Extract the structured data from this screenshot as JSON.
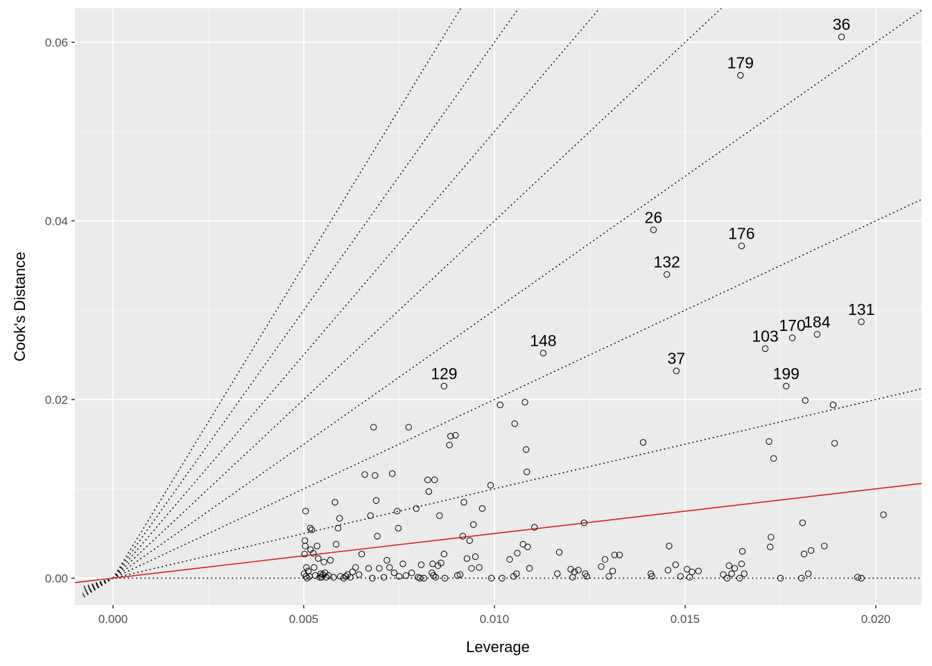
{
  "chart_data": {
    "type": "scatter",
    "xlabel": "Leverage",
    "ylabel": "Cook's Distance",
    "xlim": [
      -0.001,
      0.0212
    ],
    "ylim": [
      -0.003,
      0.0638
    ],
    "xticks": [
      0.0,
      0.005,
      0.01,
      0.015,
      0.02
    ],
    "xtick_labels": [
      "0.000",
      "0.005",
      "0.010",
      "0.015",
      "0.020"
    ],
    "yticks": [
      0.0,
      0.02,
      0.04,
      0.06
    ],
    "ytick_labels": [
      "0.00",
      "0.02",
      "0.04",
      "0.06"
    ],
    "grid": true,
    "colors": {
      "panel": "#ebebeb",
      "grid_major": "#ffffff",
      "grid_minor": "#f5f5f5",
      "points": "#000000",
      "fit_line": "#e31a1c",
      "contours": "#000000"
    },
    "contour_slopes": [
      0,
      1,
      2,
      3,
      4,
      5,
      6,
      7
    ],
    "fit_line": {
      "intercept": 0.0,
      "slope": 0.5
    },
    "labeled_points": [
      {
        "label": "36",
        "x": 0.0191,
        "y": 0.0606
      },
      {
        "label": "179",
        "x": 0.01645,
        "y": 0.0563
      },
      {
        "label": "26",
        "x": 0.01417,
        "y": 0.039
      },
      {
        "label": "176",
        "x": 0.01648,
        "y": 0.0372
      },
      {
        "label": "132",
        "x": 0.01452,
        "y": 0.034
      },
      {
        "label": "131",
        "x": 0.01962,
        "y": 0.0287
      },
      {
        "label": "184",
        "x": 0.01846,
        "y": 0.0273
      },
      {
        "label": "170",
        "x": 0.01781,
        "y": 0.0269
      },
      {
        "label": "103",
        "x": 0.0171,
        "y": 0.0257
      },
      {
        "label": "148",
        "x": 0.01128,
        "y": 0.0252
      },
      {
        "label": "37",
        "x": 0.01477,
        "y": 0.0232
      },
      {
        "label": "129",
        "x": 0.00868,
        "y": 0.0215
      },
      {
        "label": "199",
        "x": 0.01765,
        "y": 0.0215
      }
    ],
    "points": [
      [
        0.00505,
        0.0075
      ],
      [
        0.00503,
        0.0042
      ],
      [
        0.00504,
        0.0036
      ],
      [
        0.00502,
        0.0027
      ],
      [
        0.00507,
        0.0012
      ],
      [
        0.00501,
        0.0005
      ],
      [
        0.00506,
        0.0002
      ],
      [
        0.00509,
        0.0
      ],
      [
        0.00512,
        0.0008
      ],
      [
        0.00515,
        0.0002
      ],
      [
        0.00517,
        0.0056
      ],
      [
        0.00521,
        0.0054
      ],
      [
        0.00518,
        0.0032
      ],
      [
        0.00525,
        0.0028
      ],
      [
        0.00527,
        0.0012
      ],
      [
        0.0053,
        0.0003
      ],
      [
        0.00535,
        0.0036
      ],
      [
        0.00538,
        0.0022
      ],
      [
        0.00542,
        0.0001
      ],
      [
        0.00545,
        0.0005
      ],
      [
        0.00547,
        0.0001
      ],
      [
        0.0055,
        0.0004
      ],
      [
        0.00553,
        0.0018
      ],
      [
        0.00556,
        0.0006
      ],
      [
        0.00559,
        0.0001
      ],
      [
        0.00565,
        0.0003
      ],
      [
        0.0057,
        0.002
      ],
      [
        0.00578,
        0.0001
      ],
      [
        0.00582,
        0.0085
      ],
      [
        0.00585,
        0.0038
      ],
      [
        0.0059,
        0.0056
      ],
      [
        0.00594,
        0.0067
      ],
      [
        0.00596,
        0.0002
      ],
      [
        0.00605,
        0.0
      ],
      [
        0.0061,
        0.0002
      ],
      [
        0.00615,
        0.0004
      ],
      [
        0.00622,
        0.0001
      ],
      [
        0.00628,
        0.0007
      ],
      [
        0.00636,
        0.0012
      ],
      [
        0.00645,
        0.0004
      ],
      [
        0.00652,
        0.0027
      ],
      [
        0.0066,
        0.0116
      ],
      [
        0.0067,
        0.0011
      ],
      [
        0.00675,
        0.007
      ],
      [
        0.0068,
        0.0
      ],
      [
        0.00683,
        0.0169
      ],
      [
        0.00687,
        0.0115
      ],
      [
        0.0069,
        0.0087
      ],
      [
        0.00693,
        0.0047
      ],
      [
        0.00698,
        0.0011
      ],
      [
        0.0071,
        0.0001
      ],
      [
        0.00718,
        0.002
      ],
      [
        0.00725,
        0.0012
      ],
      [
        0.00732,
        0.0117
      ],
      [
        0.00737,
        0.0006
      ],
      [
        0.00745,
        0.0075
      ],
      [
        0.00748,
        0.0056
      ],
      [
        0.0075,
        0.0002
      ],
      [
        0.0076,
        0.0016
      ],
      [
        0.00768,
        0.0003
      ],
      [
        0.00775,
        0.0169
      ],
      [
        0.00783,
        0.0006
      ],
      [
        0.00795,
        0.0078
      ],
      [
        0.008,
        0.0001
      ],
      [
        0.00805,
        0.0
      ],
      [
        0.00808,
        0.0015
      ],
      [
        0.00815,
        0.0
      ],
      [
        0.00825,
        0.011
      ],
      [
        0.00828,
        0.0097
      ],
      [
        0.00836,
        0.0006
      ],
      [
        0.00838,
        0.0016
      ],
      [
        0.0084,
        0.0003
      ],
      [
        0.00843,
        0.011
      ],
      [
        0.00846,
        0.0001
      ],
      [
        0.00852,
        0.0014
      ],
      [
        0.00856,
        0.007
      ],
      [
        0.0086,
        0.0017
      ],
      [
        0.00868,
        0.0027
      ],
      [
        0.0087,
        0.0
      ],
      [
        0.00882,
        0.0149
      ],
      [
        0.00885,
        0.0159
      ],
      [
        0.00898,
        0.016
      ],
      [
        0.00903,
        0.0003
      ],
      [
        0.0091,
        0.0004
      ],
      [
        0.00917,
        0.0047
      ],
      [
        0.0092,
        0.0085
      ],
      [
        0.00928,
        0.0022
      ],
      [
        0.00935,
        0.0042
      ],
      [
        0.0094,
        0.0011
      ],
      [
        0.00945,
        0.006
      ],
      [
        0.0095,
        0.0024
      ],
      [
        0.0096,
        0.0012
      ],
      [
        0.00968,
        0.0078
      ],
      [
        0.0099,
        0.0104
      ],
      [
        0.00992,
        0.0
      ],
      [
        0.01015,
        0.0194
      ],
      [
        0.0102,
        0.0
      ],
      [
        0.0104,
        0.0021
      ],
      [
        0.0105,
        0.0002
      ],
      [
        0.01053,
        0.0173
      ],
      [
        0.01058,
        0.0005
      ],
      [
        0.0106,
        0.0028
      ],
      [
        0.01075,
        0.0038
      ],
      [
        0.0108,
        0.0197
      ],
      [
        0.01083,
        0.0144
      ],
      [
        0.01085,
        0.0119
      ],
      [
        0.01087,
        0.0035
      ],
      [
        0.01092,
        0.0011
      ],
      [
        0.01105,
        0.0057
      ],
      [
        0.01165,
        0.0005
      ],
      [
        0.0117,
        0.0029
      ],
      [
        0.012,
        0.001
      ],
      [
        0.01205,
        0.0001
      ],
      [
        0.0121,
        0.0007
      ],
      [
        0.0122,
        0.0009
      ],
      [
        0.01235,
        0.0062
      ],
      [
        0.01238,
        0.0005
      ],
      [
        0.01242,
        0.0002
      ],
      [
        0.0128,
        0.0013
      ],
      [
        0.0129,
        0.0021
      ],
      [
        0.013,
        0.0002
      ],
      [
        0.0131,
        0.0008
      ],
      [
        0.01315,
        0.0026
      ],
      [
        0.01328,
        0.0026
      ],
      [
        0.0139,
        0.0152
      ],
      [
        0.0141,
        0.0005
      ],
      [
        0.01413,
        0.0002
      ],
      [
        0.01455,
        0.0009
      ],
      [
        0.01458,
        0.0036
      ],
      [
        0.01475,
        0.0015
      ],
      [
        0.01488,
        0.0002
      ],
      [
        0.01505,
        0.001
      ],
      [
        0.01512,
        0.0001
      ],
      [
        0.01518,
        0.0007
      ],
      [
        0.01535,
        0.0008
      ],
      [
        0.016,
        0.0004
      ],
      [
        0.0161,
        0.0
      ],
      [
        0.01615,
        0.0014
      ],
      [
        0.01622,
        0.0005
      ],
      [
        0.0163,
        0.0011
      ],
      [
        0.01643,
        0.0
      ],
      [
        0.01648,
        0.0016
      ],
      [
        0.0165,
        0.003
      ],
      [
        0.01655,
        0.0005
      ],
      [
        0.0172,
        0.0153
      ],
      [
        0.01723,
        0.0035
      ],
      [
        0.01725,
        0.0046
      ],
      [
        0.01732,
        0.0134
      ],
      [
        0.0175,
        0.0
      ],
      [
        0.01805,
        0.0
      ],
      [
        0.01808,
        0.0062
      ],
      [
        0.01812,
        0.0027
      ],
      [
        0.01815,
        0.0199
      ],
      [
        0.01823,
        0.0005
      ],
      [
        0.0183,
        0.0031
      ],
      [
        0.01865,
        0.0036
      ],
      [
        0.01888,
        0.0194
      ],
      [
        0.01892,
        0.0151
      ],
      [
        0.01952,
        0.0001
      ],
      [
        0.01962,
        0.0
      ],
      [
        0.0202,
        0.0071
      ],
      [
        0.0191,
        0.0606
      ],
      [
        0.01645,
        0.0563
      ],
      [
        0.01417,
        0.039
      ],
      [
        0.01648,
        0.0372
      ],
      [
        0.01452,
        0.034
      ],
      [
        0.01962,
        0.0287
      ],
      [
        0.01846,
        0.0273
      ],
      [
        0.01781,
        0.0269
      ],
      [
        0.0171,
        0.0257
      ],
      [
        0.01128,
        0.0252
      ],
      [
        0.01477,
        0.0232
      ],
      [
        0.00868,
        0.0215
      ],
      [
        0.01765,
        0.0215
      ]
    ]
  }
}
